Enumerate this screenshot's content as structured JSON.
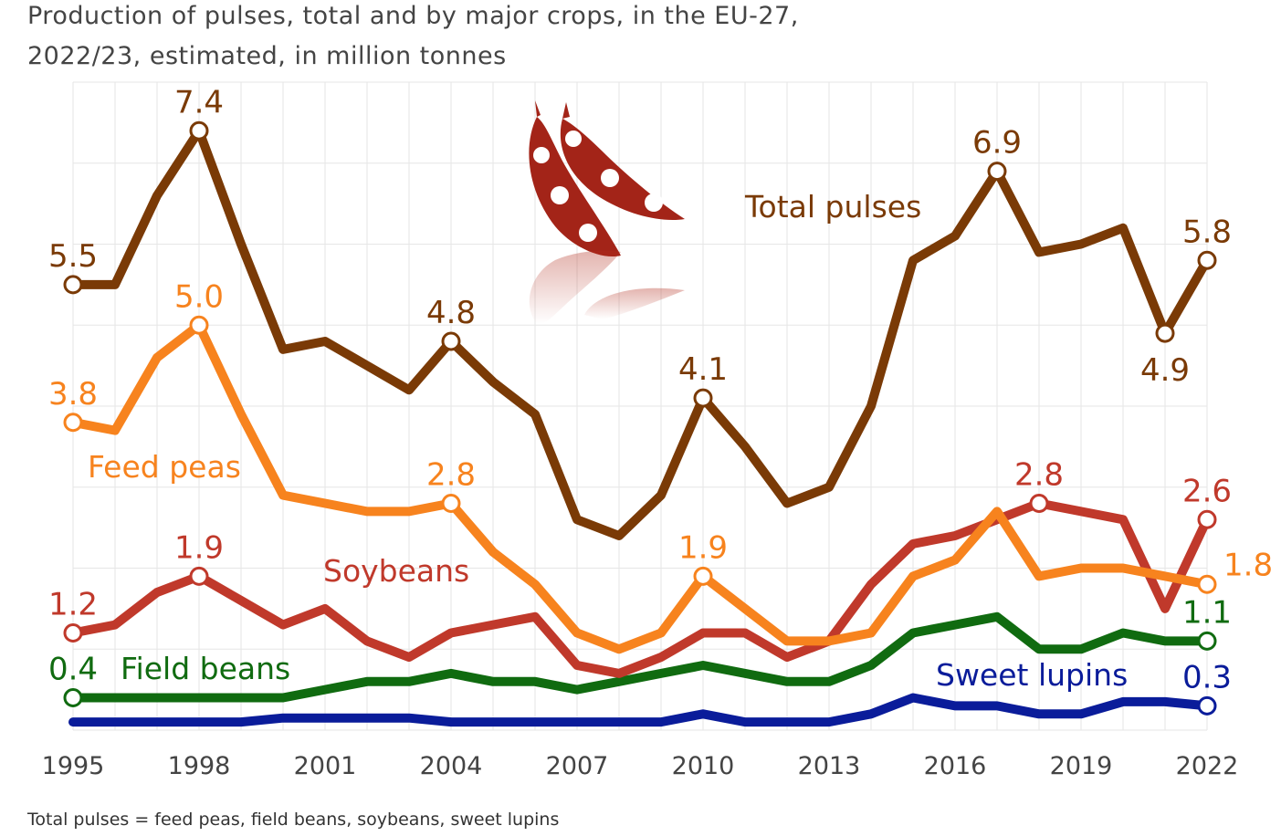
{
  "chart_data": {
    "type": "line",
    "title_lines": [
      "Production of pulses, total and by major crops, in the EU-27,",
      "2022/23, estimated, in million tonnes"
    ],
    "footnote": "Total pulses = feed peas, field beans, soybeans, sweet lupins",
    "x": [
      1995,
      1996,
      1997,
      1998,
      1999,
      2000,
      2001,
      2002,
      2003,
      2004,
      2005,
      2006,
      2007,
      2008,
      2009,
      2010,
      2011,
      2012,
      2013,
      2014,
      2015,
      2016,
      2017,
      2018,
      2019,
      2020,
      2021,
      2022
    ],
    "x_ticks": [
      "1995",
      "1998",
      "2001",
      "2004",
      "2007",
      "2010",
      "2013",
      "2016",
      "2019",
      "2022"
    ],
    "ylim": [
      0,
      8
    ],
    "grid": true,
    "series": [
      {
        "name": "Total pulses",
        "color": "#7a3a06",
        "values": [
          5.5,
          5.5,
          6.6,
          7.4,
          6.0,
          4.7,
          4.8,
          4.5,
          4.2,
          4.8,
          4.3,
          3.9,
          2.6,
          2.4,
          2.9,
          4.1,
          3.5,
          2.8,
          3.0,
          4.0,
          5.8,
          6.1,
          6.9,
          5.9,
          6.0,
          6.2,
          4.9,
          5.8
        ],
        "labels": [
          {
            "x": 1995,
            "text": "5.5",
            "pos": "above"
          },
          {
            "x": 1998,
            "text": "7.4",
            "pos": "above"
          },
          {
            "x": 2004,
            "text": "4.8",
            "pos": "above"
          },
          {
            "x": 2010,
            "text": "4.1",
            "pos": "above"
          },
          {
            "x": 2017,
            "text": "6.9",
            "pos": "above"
          },
          {
            "x": 2021,
            "text": "4.9",
            "pos": "below"
          },
          {
            "x": 2022,
            "text": "5.8",
            "pos": "above"
          }
        ]
      },
      {
        "name": "Feed peas",
        "color": "#f7831e",
        "values": [
          3.8,
          3.7,
          4.6,
          5.0,
          3.9,
          2.9,
          2.8,
          2.7,
          2.7,
          2.8,
          2.2,
          1.8,
          1.2,
          1.0,
          1.2,
          1.9,
          1.5,
          1.1,
          1.1,
          1.2,
          1.9,
          2.1,
          2.7,
          1.9,
          2.0,
          2.0,
          1.9,
          1.8
        ],
        "labels": [
          {
            "x": 1995,
            "text": "3.8",
            "pos": "above"
          },
          {
            "x": 1998,
            "text": "5.0",
            "pos": "above"
          },
          {
            "x": 2004,
            "text": "2.8",
            "pos": "above"
          },
          {
            "x": 2010,
            "text": "1.9",
            "pos": "above"
          },
          {
            "x": 2022,
            "text": "1.8",
            "pos": "right"
          }
        ]
      },
      {
        "name": "Soybeans",
        "color": "#c0392b",
        "values": [
          1.2,
          1.3,
          1.7,
          1.9,
          1.6,
          1.3,
          1.5,
          1.1,
          0.9,
          1.2,
          1.3,
          1.4,
          0.8,
          0.7,
          0.9,
          1.2,
          1.2,
          0.9,
          1.1,
          1.8,
          2.3,
          2.4,
          2.6,
          2.8,
          2.7,
          2.6,
          1.5,
          2.6
        ],
        "labels": [
          {
            "x": 1995,
            "text": "1.2",
            "pos": "above"
          },
          {
            "x": 1998,
            "text": "1.9",
            "pos": "above"
          },
          {
            "x": 2018,
            "text": "2.8",
            "pos": "above"
          },
          {
            "x": 2022,
            "text": "2.6",
            "pos": "above"
          }
        ]
      },
      {
        "name": "Field beans",
        "color": "#106b10",
        "values": [
          0.4,
          0.4,
          0.4,
          0.4,
          0.4,
          0.4,
          0.5,
          0.6,
          0.6,
          0.7,
          0.6,
          0.6,
          0.5,
          0.6,
          0.7,
          0.8,
          0.7,
          0.6,
          0.6,
          0.8,
          1.2,
          1.3,
          1.4,
          1.0,
          1.0,
          1.2,
          1.1,
          1.1
        ],
        "labels": [
          {
            "x": 1995,
            "text": "0.4",
            "pos": "above"
          },
          {
            "x": 2022,
            "text": "1.1",
            "pos": "above"
          }
        ]
      },
      {
        "name": "Sweet lupins",
        "color": "#0a1c9a",
        "values": [
          0.1,
          0.1,
          0.1,
          0.1,
          0.1,
          0.15,
          0.15,
          0.15,
          0.15,
          0.1,
          0.1,
          0.1,
          0.1,
          0.1,
          0.1,
          0.2,
          0.1,
          0.1,
          0.1,
          0.2,
          0.4,
          0.3,
          0.3,
          0.2,
          0.2,
          0.35,
          0.35,
          0.3
        ],
        "labels": [
          {
            "x": 2022,
            "text": "0.3",
            "pos": "above"
          }
        ]
      }
    ]
  },
  "icons": [
    "pea-pod-icon"
  ]
}
